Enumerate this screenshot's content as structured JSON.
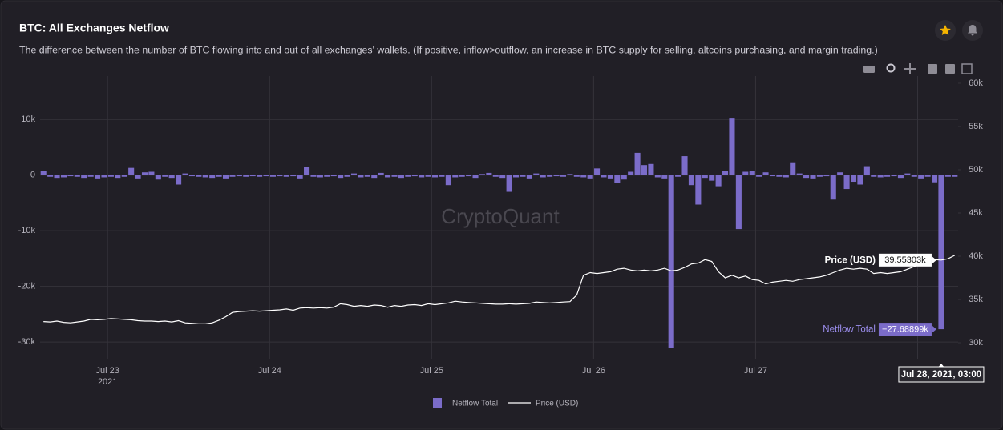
{
  "chart_data": {
    "type": "bar",
    "title": "BTC: All Exchanges Netflow",
    "subtitle": "The difference between the number of BTC flowing into and out of all exchanges' wallets. (If positive, inflow>outflow, an increase in BTC supply for selling, altcoins purchasing, and margin trading.)",
    "watermark": "CryptoQuant",
    "x_year": "2021",
    "hover_label": "Jul 28, 2021, 03:00",
    "categories": [
      null,
      null,
      null,
      null,
      null,
      null,
      null,
      null,
      null,
      null,
      "Jul 23",
      null,
      null,
      null,
      null,
      null,
      null,
      null,
      null,
      null,
      null,
      null,
      null,
      null,
      null,
      null,
      null,
      null,
      null,
      null,
      null,
      null,
      null,
      null,
      "Jul 24",
      null,
      null,
      null,
      null,
      null,
      null,
      null,
      null,
      null,
      null,
      null,
      null,
      null,
      null,
      null,
      null,
      null,
      null,
      null,
      null,
      null,
      null,
      null,
      "Jul 25",
      null,
      null,
      null,
      null,
      null,
      null,
      null,
      null,
      null,
      null,
      null,
      null,
      null,
      null,
      null,
      null,
      null,
      null,
      null,
      null,
      null,
      null,
      null,
      "Jul 26",
      null,
      null,
      null,
      null,
      null,
      null,
      null,
      null,
      null,
      null,
      null,
      null,
      null,
      null,
      null,
      null,
      null,
      null,
      null,
      null,
      null,
      null,
      null,
      "Jul 27",
      null,
      null,
      null,
      null,
      null,
      null,
      null,
      null,
      null,
      null,
      null,
      null,
      null,
      null,
      null,
      null,
      null,
      null,
      null,
      null,
      null,
      null,
      null,
      "Jul 28",
      null,
      null,
      null,
      null,
      null
    ],
    "series": [
      {
        "name": "Netflow Total",
        "type": "bar",
        "color": "#7b6cc9",
        "values": [
          700,
          -300,
          -500,
          -400,
          -200,
          -300,
          -500,
          -300,
          -600,
          -400,
          -300,
          -500,
          -300,
          1300,
          -600,
          500,
          600,
          -800,
          -300,
          -500,
          -1700,
          300,
          -200,
          -300,
          -400,
          -500,
          -300,
          -600,
          -300,
          -200,
          -300,
          -200,
          -300,
          -200,
          -300,
          -200,
          -300,
          -200,
          -600,
          1500,
          -300,
          -400,
          -300,
          -200,
          -500,
          -300,
          300,
          -400,
          -300,
          -500,
          400,
          -400,
          -300,
          -500,
          -300,
          -200,
          -400,
          -300,
          -400,
          -300,
          -1800,
          -400,
          -300,
          -200,
          -500,
          200,
          400,
          -300,
          -500,
          -3000,
          -400,
          -300,
          -600,
          300,
          -400,
          -300,
          -200,
          -300,
          200,
          -300,
          -400,
          -600,
          1200,
          -400,
          -600,
          -1400,
          -800,
          600,
          4000,
          1800,
          2000,
          -400,
          -600,
          -31000,
          -300,
          3400,
          -1800,
          -5300,
          -500,
          -1000,
          -2000,
          700,
          10300,
          -9700,
          600,
          700,
          -300,
          500,
          -200,
          -300,
          -400,
          2300,
          300,
          -500,
          -600,
          -300,
          -200,
          -4400,
          500,
          -2500,
          -1200,
          -1700,
          1600,
          -300,
          -400,
          -300,
          -200,
          -500,
          300,
          -300,
          -600,
          -300,
          -1300,
          -27688.99,
          -300,
          -300
        ],
        "value_labels": [
          null,
          null,
          null,
          null,
          null,
          null,
          null,
          null,
          null,
          null,
          null,
          null,
          null,
          null,
          null,
          null,
          null,
          null,
          null,
          null,
          null,
          null,
          null,
          null,
          null,
          null,
          null,
          null,
          null,
          null,
          null,
          null,
          null,
          null,
          null,
          null,
          null,
          null,
          null,
          null,
          null,
          null,
          null,
          null,
          null,
          null,
          null,
          null,
          null,
          null,
          null,
          null,
          null,
          null,
          null,
          null,
          null,
          null,
          null,
          null,
          null,
          null,
          null,
          null,
          null,
          null,
          null,
          null,
          null,
          null,
          null,
          null,
          null,
          null,
          null,
          null,
          null,
          null,
          null,
          null,
          null,
          null,
          null,
          null,
          null,
          null,
          null,
          null,
          null,
          null,
          null,
          null,
          null,
          null,
          null,
          null,
          null,
          null,
          null,
          null,
          null,
          null,
          null,
          null,
          null,
          null,
          null,
          null,
          null,
          null,
          null,
          null,
          null,
          null,
          null,
          null,
          null,
          null,
          null,
          null,
          null,
          null,
          null,
          null,
          null,
          null,
          null,
          null,
          null,
          null,
          null,
          null,
          null,
          "−27.68899k",
          null,
          null
        ]
      },
      {
        "name": "Price (USD)",
        "type": "line",
        "axis": "y2",
        "color": "#ffffff",
        "values": [
          32450,
          32400,
          32500,
          32350,
          32300,
          32400,
          32500,
          32700,
          32650,
          32700,
          32800,
          32750,
          32700,
          32650,
          32550,
          32500,
          32500,
          32450,
          32500,
          32400,
          32550,
          32300,
          32250,
          32200,
          32200,
          32300,
          32600,
          33000,
          33500,
          33600,
          33650,
          33700,
          33650,
          33700,
          33750,
          33800,
          33900,
          33750,
          34000,
          34050,
          34000,
          34050,
          34000,
          34100,
          34500,
          34400,
          34200,
          34300,
          34200,
          34350,
          34300,
          34100,
          34300,
          34200,
          34350,
          34400,
          34300,
          34500,
          34400,
          34500,
          34600,
          34800,
          34700,
          34650,
          34600,
          34550,
          34500,
          34450,
          34450,
          34500,
          34450,
          34500,
          34550,
          34700,
          34650,
          34600,
          34650,
          34700,
          34750,
          35500,
          37800,
          38100,
          38000,
          38100,
          38200,
          38500,
          38600,
          38400,
          38300,
          38400,
          38300,
          38400,
          38600,
          38300,
          38400,
          38700,
          39100,
          39200,
          39600,
          39400,
          38200,
          37500,
          37800,
          37500,
          37700,
          37300,
          37200,
          36800,
          37000,
          37100,
          37200,
          37100,
          37300,
          37400,
          37500,
          37600,
          37800,
          38100,
          38400,
          38600,
          38500,
          38600,
          38500,
          38000,
          38100,
          38000,
          38100,
          38200,
          38500,
          38800,
          39200,
          39500,
          39600,
          39553.03,
          39700,
          40100
        ],
        "value_labels": [
          null,
          null,
          null,
          null,
          null,
          null,
          null,
          null,
          null,
          null,
          null,
          null,
          null,
          null,
          null,
          null,
          null,
          null,
          null,
          null,
          null,
          null,
          null,
          null,
          null,
          null,
          null,
          null,
          null,
          null,
          null,
          null,
          null,
          null,
          null,
          null,
          null,
          null,
          null,
          null,
          null,
          null,
          null,
          null,
          null,
          null,
          null,
          null,
          null,
          null,
          null,
          null,
          null,
          null,
          null,
          null,
          null,
          null,
          null,
          null,
          null,
          null,
          null,
          null,
          null,
          null,
          null,
          null,
          null,
          null,
          null,
          null,
          null,
          null,
          null,
          null,
          null,
          null,
          null,
          null,
          null,
          null,
          null,
          null,
          null,
          null,
          null,
          null,
          null,
          null,
          null,
          null,
          null,
          null,
          null,
          null,
          null,
          null,
          null,
          null,
          null,
          null,
          null,
          null,
          null,
          null,
          null,
          null,
          null,
          null,
          null,
          null,
          null,
          null,
          null,
          null,
          null,
          null,
          null,
          null,
          null,
          null,
          null,
          null,
          null,
          null,
          null,
          null,
          null,
          null,
          null,
          null,
          null,
          "39.55303k",
          null,
          null
        ]
      }
    ],
    "ylim": [
      -33000,
      17800
    ],
    "yticks": [
      {
        "value": -30000,
        "label": "-30k"
      },
      {
        "value": -20000,
        "label": "-20k"
      },
      {
        "value": -10000,
        "label": "-10k"
      },
      0,
      {
        "value": 10000,
        "label": "10k"
      }
    ],
    "y2lim": [
      28150,
      60830
    ],
    "y2ticks": [
      {
        "value": 30000,
        "label": "30k"
      },
      {
        "value": 35000,
        "label": "35k"
      },
      {
        "value": 40000,
        "label": "40k"
      },
      {
        "value": 45000,
        "label": "45k"
      },
      {
        "value": 50000,
        "label": "50k"
      },
      {
        "value": 55000,
        "label": "55k"
      },
      {
        "value": 60000,
        "label": "60k"
      }
    ],
    "grid": true,
    "legend": "bottom"
  }
}
